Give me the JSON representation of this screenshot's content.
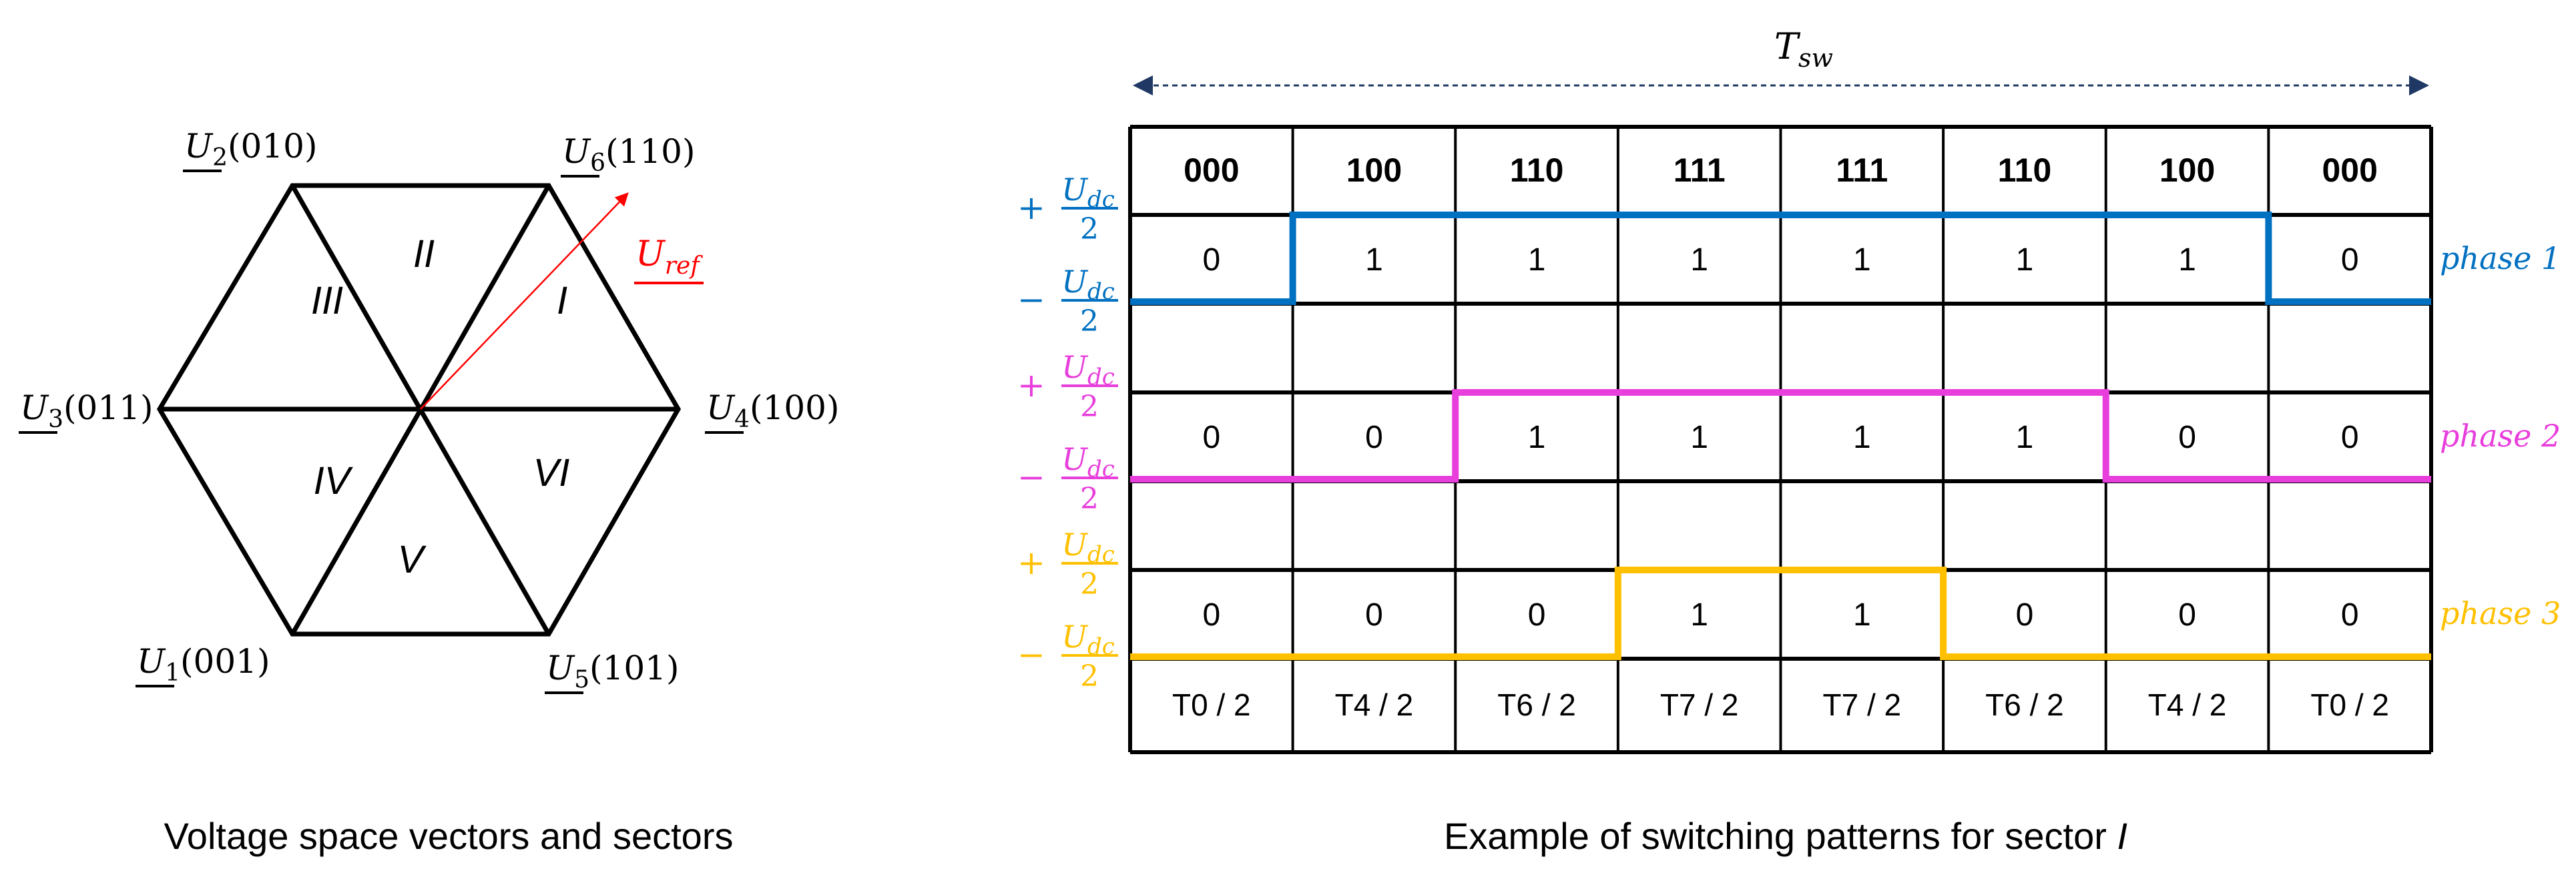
{
  "left_panel": {
    "caption": "Voltage space vectors and sectors",
    "vectors": [
      {
        "symbol": "U",
        "index": "2",
        "code": "(010)"
      },
      {
        "symbol": "U",
        "index": "6",
        "code": "(110)"
      },
      {
        "symbol": "U",
        "index": "3",
        "code": "(011)"
      },
      {
        "symbol": "U",
        "index": "4",
        "code": "(100)"
      },
      {
        "symbol": "U",
        "index": "1",
        "code": "(001)"
      },
      {
        "symbol": "U",
        "index": "5",
        "code": "(101)"
      }
    ],
    "sectors": [
      "I",
      "II",
      "III",
      "IV",
      "V",
      "VI"
    ],
    "reference": {
      "symbol": "U",
      "sub": "ref",
      "color": "#FF0000"
    }
  },
  "right_panel": {
    "caption_prefix": "Example of switching patterns for sector ",
    "caption_sector": "I",
    "period": {
      "symbol": "T",
      "sub": "sw"
    },
    "states": [
      "000",
      "100",
      "110",
      "111",
      "111",
      "110",
      "100",
      "000"
    ],
    "times": [
      "T0 / 2",
      "T4 / 2",
      "T6 / 2",
      "T7 / 2",
      "T7 / 2",
      "T6 / 2",
      "T4 / 2",
      "T0 / 2"
    ],
    "level_label": {
      "plus": "+",
      "minus": "−",
      "num": "U",
      "num_sub": "dc",
      "den": "2"
    },
    "phases": [
      {
        "name": "phase 1",
        "color": "#0070C0",
        "values": [
          0,
          1,
          1,
          1,
          1,
          1,
          1,
          0
        ]
      },
      {
        "name": "phase 2",
        "color": "#E83EDC",
        "values": [
          0,
          0,
          1,
          1,
          1,
          1,
          0,
          0
        ]
      },
      {
        "name": "phase 3",
        "color": "#FFC000",
        "values": [
          0,
          0,
          0,
          1,
          1,
          0,
          0,
          0
        ]
      }
    ]
  }
}
